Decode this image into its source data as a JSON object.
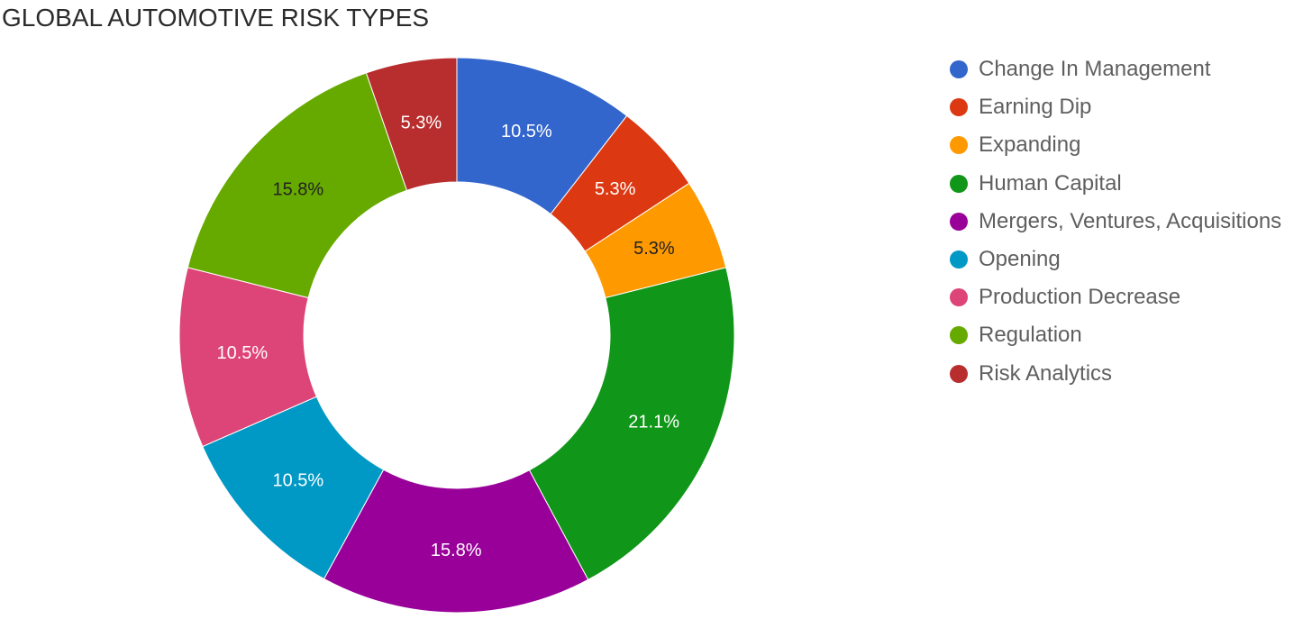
{
  "chart_data": {
    "type": "pie",
    "title": "GLOBAL AUTOMOTIVE RISK TYPES",
    "donut": true,
    "legend_position": "right",
    "categories": [
      "Change In Management",
      "Earning Dip",
      "Expanding",
      "Human Capital",
      "Mergers, Ventures, Acquisitions",
      "Opening",
      "Production Decrease",
      "Regulation",
      "Risk Analytics"
    ],
    "values": [
      10.5,
      5.3,
      5.3,
      21.1,
      15.8,
      10.5,
      10.5,
      15.8,
      5.3
    ],
    "labels": [
      "10.5%",
      "5.3%",
      "5.3%",
      "21.1%",
      "15.8%",
      "10.5%",
      "10.5%",
      "15.8%",
      "5.3%"
    ],
    "colors": [
      "#3366cc",
      "#dc3912",
      "#ff9900",
      "#109618",
      "#990099",
      "#0099c6",
      "#dd4477",
      "#66aa00",
      "#b82e2e"
    ],
    "label_colors": [
      "#ffffff",
      "#ffffff",
      "#222222",
      "#ffffff",
      "#ffffff",
      "#ffffff",
      "#ffffff",
      "#222222",
      "#ffffff"
    ]
  }
}
